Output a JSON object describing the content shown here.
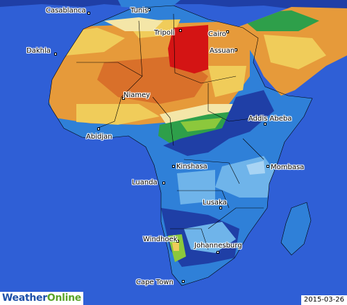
{
  "brand": {
    "part1": "Weather",
    "part2": "Online"
  },
  "date": "2015-03-26",
  "cities": [
    {
      "id": "casablanca",
      "name": "Casablanca"
    },
    {
      "id": "tunis",
      "name": "Tunis"
    },
    {
      "id": "tripoli",
      "name": "Tripoli"
    },
    {
      "id": "cairo",
      "name": "Cairo"
    },
    {
      "id": "assuan",
      "name": "Assuan"
    },
    {
      "id": "dakhla",
      "name": "Dakhla"
    },
    {
      "id": "niamey",
      "name": "Niamey"
    },
    {
      "id": "addis-abeba",
      "name": "Addis Abeba"
    },
    {
      "id": "abidjan",
      "name": "Abidjan"
    },
    {
      "id": "kinshasa",
      "name": "Kinshasa"
    },
    {
      "id": "mombasa",
      "name": "Mombasa"
    },
    {
      "id": "luanda",
      "name": "Luanda"
    },
    {
      "id": "lusaka",
      "name": "Lusaka"
    },
    {
      "id": "windhoek",
      "name": "Windhoek"
    },
    {
      "id": "johannesburg",
      "name": "Johannesburg"
    },
    {
      "id": "cape-town",
      "name": "Cape Town"
    }
  ],
  "colors": {
    "sea": "#2f5fd6",
    "dark_blue": "#1f3fa6",
    "mid_blue": "#2f80d8",
    "light_blue": "#6fb4ea",
    "pale_blue": "#a8d4f4",
    "green": "#2e9f4a",
    "light_green": "#8cc83c",
    "cream": "#f4e6a8",
    "yellow": "#f0cc5a",
    "orange": "#e69a3a",
    "dark_orange": "#d9702a",
    "red": "#d41414"
  }
}
